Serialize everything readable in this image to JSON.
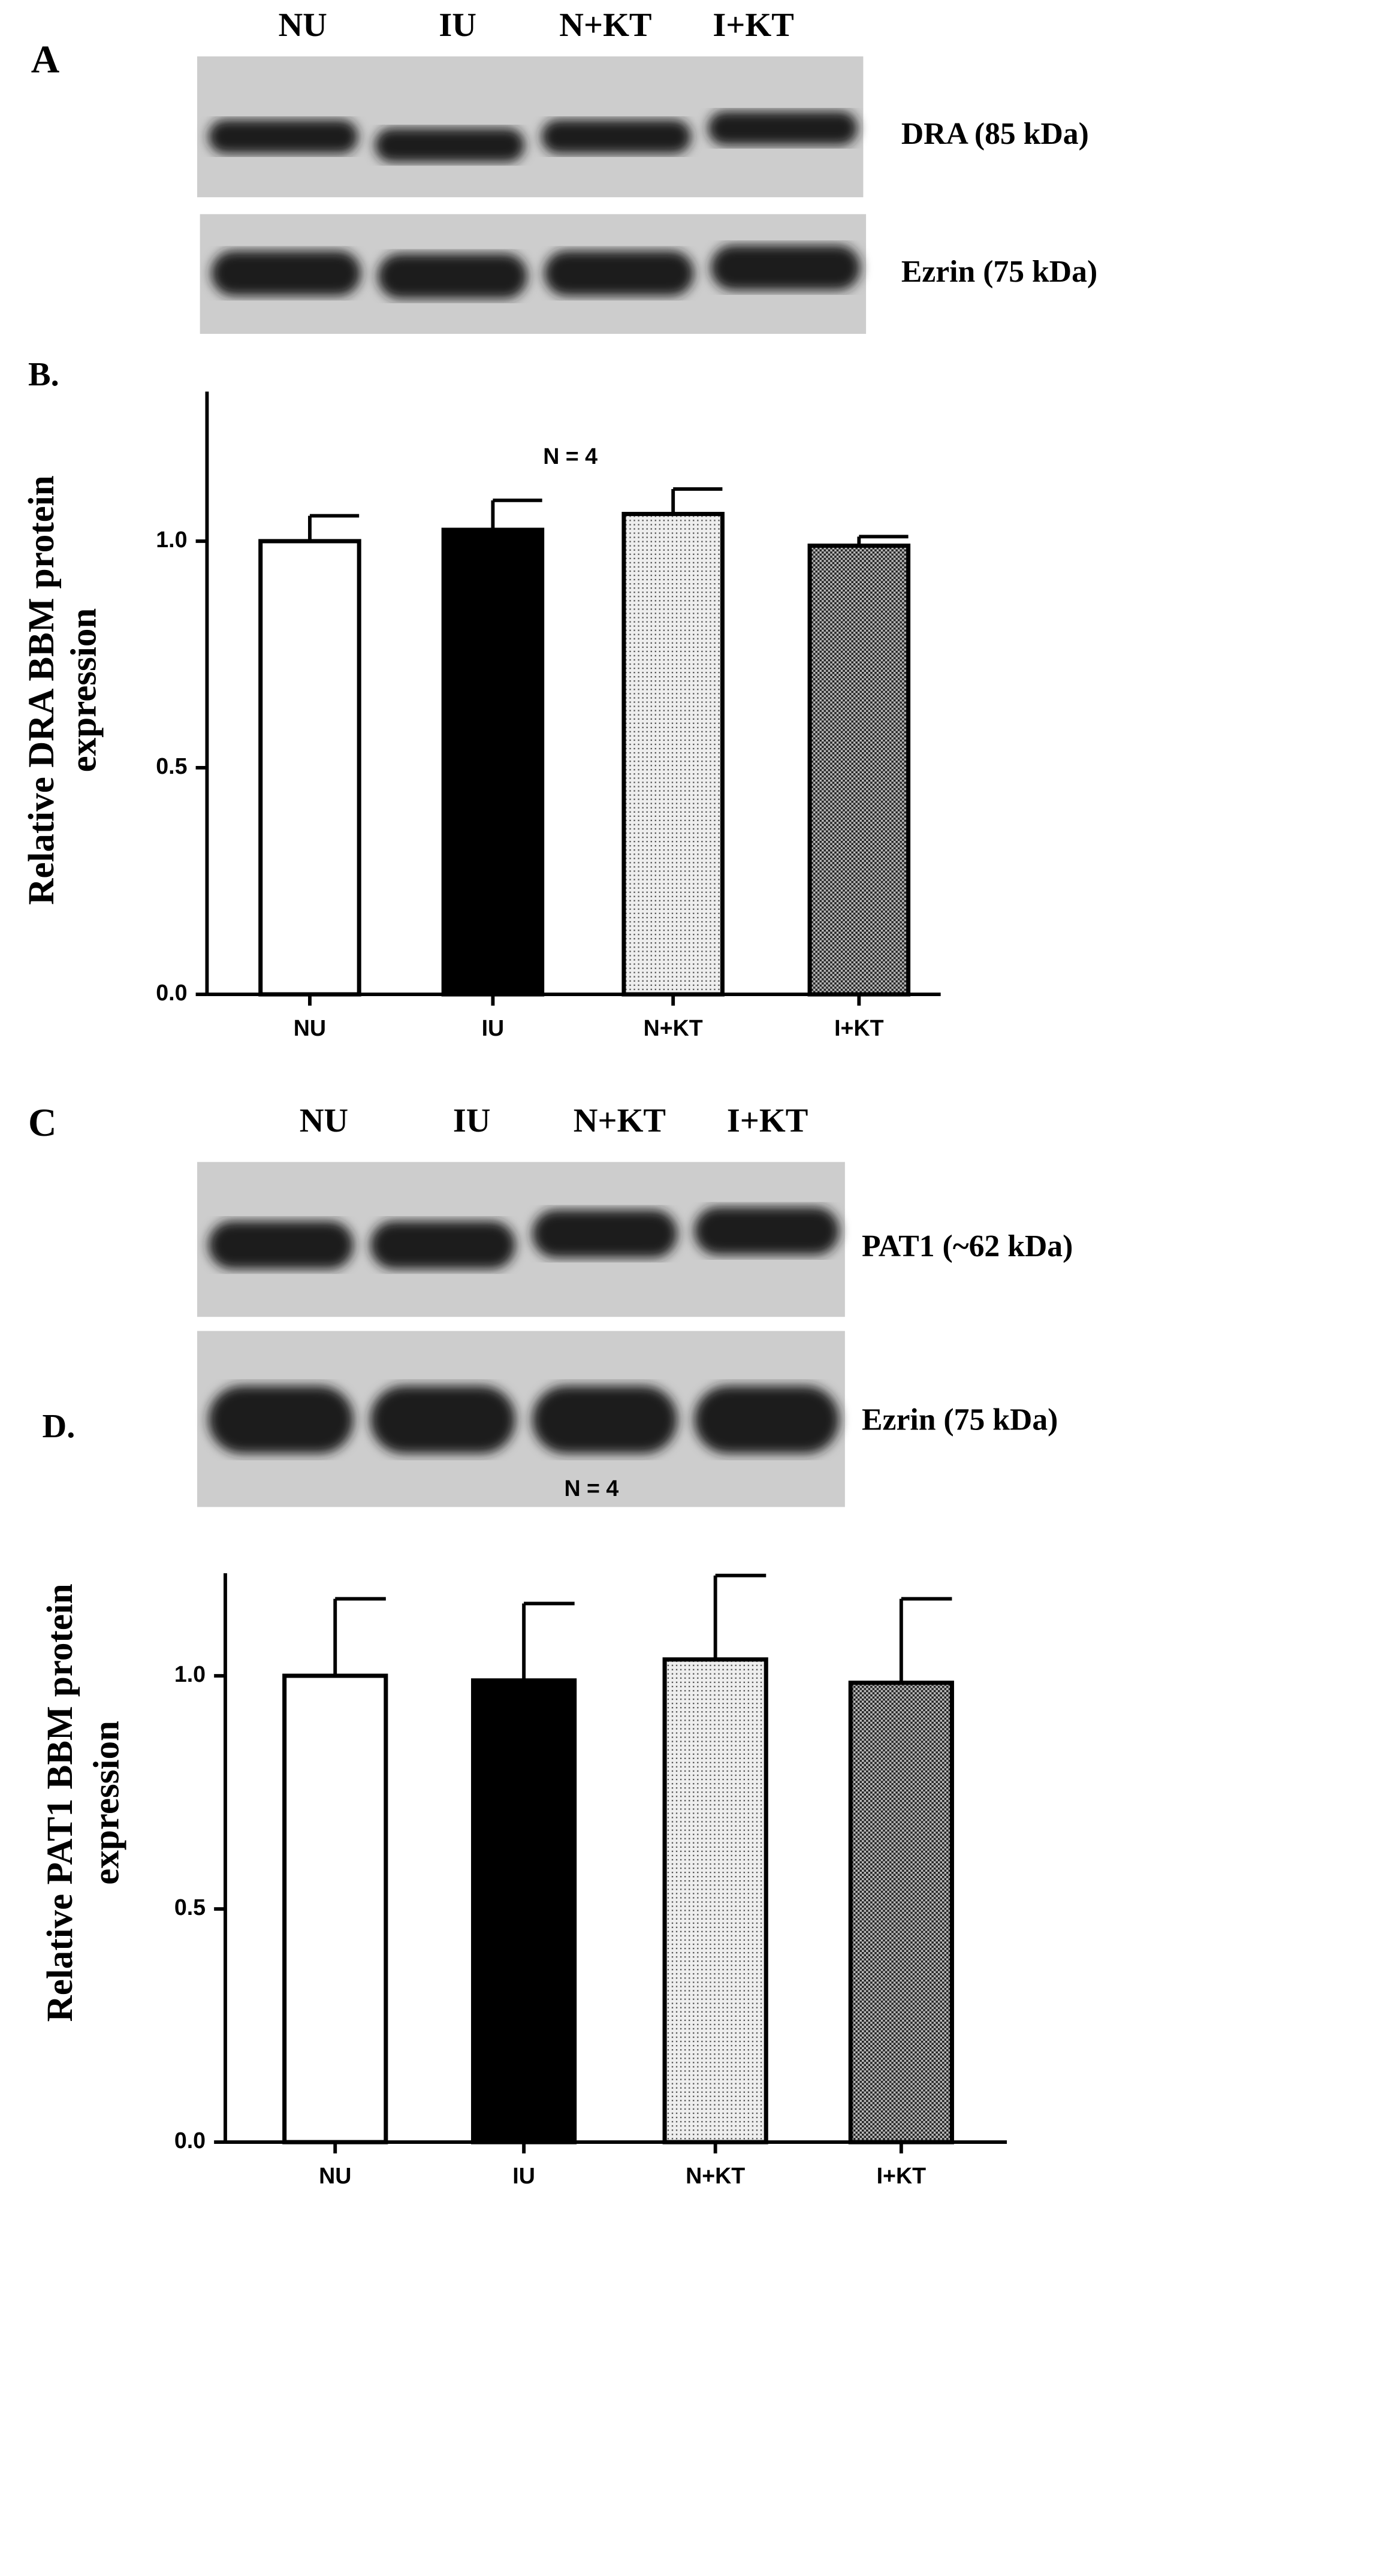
{
  "chart_data": [
    {
      "type": "bar",
      "panel": "B.",
      "annotation": "N = 4",
      "ylabel": [
        "Relative DRA BBM protein",
        "expression"
      ],
      "categories": [
        "NU",
        "IU",
        "N+KT",
        "I+KT"
      ],
      "values": [
        1.0,
        1.025,
        1.06,
        0.99
      ],
      "errors": [
        0.056,
        0.065,
        0.055,
        0.02
      ],
      "colors": [
        "#ffffff",
        "#000000",
        "#d8d8d8",
        "#8c8c8c"
      ],
      "ylim": [
        0,
        1.33
      ],
      "yticks": [
        {
          "value": 0,
          "label": "0.0"
        },
        0.5,
        {
          "value": 1,
          "label": "1.0"
        }
      ]
    },
    {
      "type": "bar",
      "panel": "D.",
      "annotation": "N = 4",
      "ylabel": [
        "Relative PAT1 BBM protein",
        "expression"
      ],
      "categories": [
        "NU",
        "IU",
        "N+KT",
        "I+KT"
      ],
      "values": [
        1.0,
        0.99,
        1.035,
        0.985
      ],
      "errors": [
        0.165,
        0.165,
        0.18,
        0.18
      ],
      "colors": [
        "#ffffff",
        "#000000",
        "#d8d8d8",
        "#8c8c8c"
      ],
      "ylim": [
        0,
        1.22
      ],
      "yticks": [
        {
          "value": 0,
          "label": "0.0"
        },
        0.5,
        {
          "value": 1,
          "label": "1.0"
        }
      ]
    }
  ],
  "blots": [
    {
      "panel": "A",
      "lanes": [
        "NU",
        "IU",
        "N+KT",
        "I+KT"
      ],
      "rows": [
        "DRA (85 kDa)",
        "Ezrin (75 kDa)"
      ]
    },
    {
      "panel": "C",
      "lanes": [
        "NU",
        "IU",
        "N+KT",
        "I+KT"
      ],
      "rows": [
        "PAT1 (~62 kDa)",
        "Ezrin (75 kDa)"
      ]
    }
  ]
}
